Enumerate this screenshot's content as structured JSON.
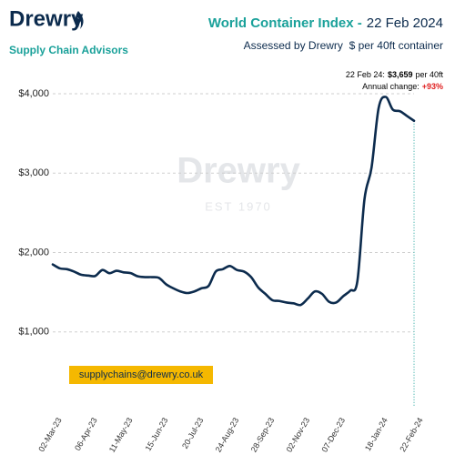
{
  "chart_data": {
    "type": "line",
    "brand": "Drewry",
    "brand_tagline": "Supply Chain Advisors",
    "title": "World Container Index -",
    "title_date": "22 Feb 2024",
    "subtitle": "Assessed by Drewry  $ per 40ft container",
    "annotation": {
      "date_label": "22 Feb 24:",
      "value_label": "$3,659",
      "unit": "per 40ft",
      "change_label": "Annual change:",
      "change": "+93%"
    },
    "watermark": "Drewry",
    "watermark_sub": "EST 1970",
    "contact": "supplychains@drewry.co.uk",
    "categories": [
      "02-Mar-23",
      null,
      null,
      null,
      null,
      "06-Apr-23",
      null,
      null,
      null,
      null,
      "11-May-23",
      null,
      null,
      null,
      null,
      "15-Jun-23",
      null,
      null,
      null,
      null,
      "20-Jul-23",
      null,
      null,
      null,
      null,
      "24-Aug-23",
      null,
      null,
      null,
      null,
      "28-Sep-23",
      null,
      null,
      null,
      null,
      "02-Nov-23",
      null,
      null,
      null,
      null,
      "07-Dec-23",
      null,
      null,
      null,
      null,
      null,
      "18-Jan-24",
      null,
      null,
      null,
      null,
      "22-Feb-24"
    ],
    "series": [
      {
        "name": "World Container Index",
        "color": "#0c2b4d",
        "values": [
          1850,
          1800,
          1790,
          1760,
          1720,
          1710,
          1705,
          1780,
          1740,
          1770,
          1750,
          1740,
          1700,
          1690,
          1690,
          1680,
          1600,
          1550,
          1510,
          1490,
          1510,
          1550,
          1580,
          1760,
          1790,
          1830,
          1780,
          1760,
          1690,
          1560,
          1480,
          1400,
          1390,
          1370,
          1360,
          1340,
          1420,
          1510,
          1480,
          1380,
          1370,
          1450,
          1520,
          1640,
          2670,
          3070,
          3820,
          3960,
          3800,
          3780,
          3720,
          3659
        ]
      }
    ],
    "ylim": [
      0,
      4000
    ],
    "yticks": [
      {
        "value": 1000,
        "label": "$1,000"
      },
      {
        "value": 2000,
        "label": "$2,000"
      },
      {
        "value": 3000,
        "label": "$3,000"
      },
      {
        "value": 4000,
        "label": "$4,000"
      }
    ],
    "grid": true
  }
}
